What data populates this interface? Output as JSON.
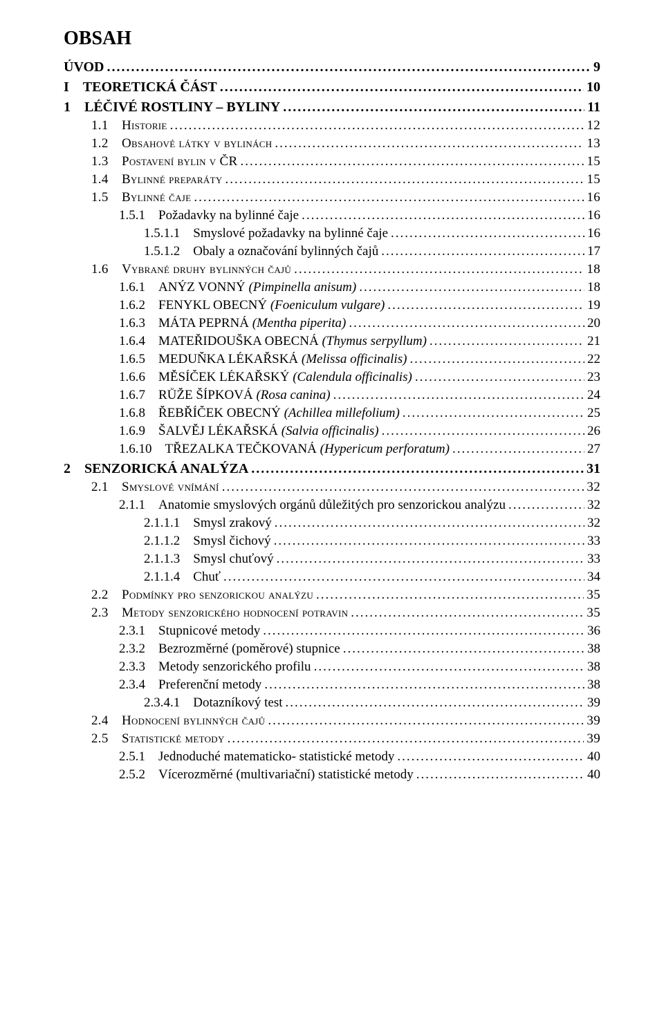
{
  "title": "OBSAH",
  "leader_fill": "..................................................................................................................................................................................................",
  "entries": [
    {
      "num": "",
      "text": "ÚVOD",
      "page": "9",
      "cls": "lvl-0",
      "indent": "indent-0"
    },
    {
      "num": "I",
      "text": "TEORETICKÁ ČÁST",
      "page": "10",
      "cls": "lvl-0",
      "indent": "indent-0"
    },
    {
      "num": "1",
      "text": "LÉČIVÉ ROSTLINY – BYLINY",
      "page": "11",
      "cls": "lvl-0",
      "indent": "indent-0"
    },
    {
      "num": "1.1",
      "text": "Historie",
      "page": "12",
      "cls": "lvl-2 smallcaps",
      "indent": "indent-1"
    },
    {
      "num": "1.2",
      "text": "Obsahové látky v bylinách",
      "page": "13",
      "cls": "lvl-2 smallcaps",
      "indent": "indent-1"
    },
    {
      "num": "1.3",
      "text": "Postavení bylin v ČR",
      "page": "15",
      "cls": "lvl-2 smallcaps",
      "indent": "indent-1"
    },
    {
      "num": "1.4",
      "text": "Bylinné preparáty",
      "page": "15",
      "cls": "lvl-2 smallcaps",
      "indent": "indent-1"
    },
    {
      "num": "1.5",
      "text": "Bylinné čaje",
      "page": "16",
      "cls": "lvl-2 smallcaps",
      "indent": "indent-1"
    },
    {
      "num": "1.5.1",
      "text": "Požadavky na bylinné čaje",
      "page": "16",
      "cls": "lvl-3",
      "indent": "indent-2"
    },
    {
      "num": "1.5.1.1",
      "text": "Smyslové požadavky na bylinné čaje",
      "page": "16",
      "cls": "lvl-4",
      "indent": "indent-3"
    },
    {
      "num": "1.5.1.2",
      "text": "Obaly a označování bylinných čajů",
      "page": "17",
      "cls": "lvl-4",
      "indent": "indent-3"
    },
    {
      "num": "1.6",
      "text": "Vybrané druhy bylinných čajů",
      "page": "18",
      "cls": "lvl-2 smallcaps",
      "indent": "indent-1"
    },
    {
      "num": "1.6.1",
      "text": "ANÝZ VONNÝ ",
      "latin": "(Pimpinella anisum)",
      "page": "18",
      "cls": "lvl-3",
      "indent": "indent-2"
    },
    {
      "num": "1.6.2",
      "text": "FENYKL  OBECNÝ  ",
      "latin": "(Foeniculum vulgare)",
      "page": "19",
      "cls": "lvl-3",
      "indent": "indent-2"
    },
    {
      "num": "1.6.3",
      "text": "MÁTA PEPRNÁ  ",
      "latin": "(Mentha piperita)",
      "page": "20",
      "cls": "lvl-3",
      "indent": "indent-2"
    },
    {
      "num": "1.6.4",
      "text": "MATEŘIDOUŠKA OBECNÁ  ",
      "latin": "(Thymus serpyllum)",
      "page": "21",
      "cls": "lvl-3",
      "indent": "indent-2"
    },
    {
      "num": "1.6.5",
      "text": "MEDUŇKA LÉKAŘSKÁ  ",
      "latin": "(Melissa officinalis)",
      "page": "22",
      "cls": "lvl-3",
      "indent": "indent-2"
    },
    {
      "num": "1.6.6",
      "text": "MĚSÍČEK  LÉKAŘSKÝ ",
      "latin": "(Calendula officinalis)",
      "page": "23",
      "cls": "lvl-3",
      "indent": "indent-2"
    },
    {
      "num": "1.6.7",
      "text": "RŮŽE  ŠÍPKOVÁ ",
      "latin": "(Rosa canina)",
      "page": "24",
      "cls": "lvl-3",
      "indent": "indent-2"
    },
    {
      "num": "1.6.8",
      "text": "ŘEBŘÍČEK  OBECNÝ ",
      "latin": "(Achillea millefolium)",
      "page": "25",
      "cls": "lvl-3",
      "indent": "indent-2"
    },
    {
      "num": "1.6.9",
      "text": "ŠALVĚJ  LÉKAŘSKÁ  ",
      "latin": "(Salvia officinalis)",
      "page": "26",
      "cls": "lvl-3",
      "indent": "indent-2"
    },
    {
      "num": "1.6.10",
      "text": "TŘEZALKA TEČKOVANÁ ",
      "latin": "(Hypericum perforatum)",
      "page": "27",
      "cls": "lvl-3",
      "indent": "indent-2"
    },
    {
      "num": "2",
      "text": "SENZORICKÁ ANALÝZA",
      "page": "31",
      "cls": "lvl-0",
      "indent": "indent-0"
    },
    {
      "num": "2.1",
      "text": "Smyslové vnímání",
      "page": "32",
      "cls": "lvl-2 smallcaps",
      "indent": "indent-1"
    },
    {
      "num": "2.1.1",
      "text": "Anatomie smyslových orgánů důležitých pro senzorickou analýzu",
      "page": "32",
      "cls": "lvl-3",
      "indent": "indent-2"
    },
    {
      "num": "2.1.1.1",
      "text": "Smysl zrakový",
      "page": "32",
      "cls": "lvl-4",
      "indent": "indent-3"
    },
    {
      "num": "2.1.1.2",
      "text": "Smysl čichový",
      "page": "33",
      "cls": "lvl-4",
      "indent": "indent-3"
    },
    {
      "num": "2.1.1.3",
      "text": "Smysl chuťový",
      "page": "33",
      "cls": "lvl-4",
      "indent": "indent-3"
    },
    {
      "num": "2.1.1.4",
      "text": "Chuť",
      "page": "34",
      "cls": "lvl-4",
      "indent": "indent-3"
    },
    {
      "num": "2.2",
      "text": "Podmínky pro senzorickou analýzu",
      "page": "35",
      "cls": "lvl-2 smallcaps",
      "indent": "indent-1"
    },
    {
      "num": "2.3",
      "text": "Metody senzorického hodnocení potravin",
      "page": "35",
      "cls": "lvl-2 smallcaps",
      "indent": "indent-1"
    },
    {
      "num": "2.3.1",
      "text": "Stupnicové metody",
      "page": "36",
      "cls": "lvl-3",
      "indent": "indent-2"
    },
    {
      "num": "2.3.2",
      "text": "Bezrozměrné (poměrové) stupnice",
      "page": "38",
      "cls": "lvl-3",
      "indent": "indent-2"
    },
    {
      "num": "2.3.3",
      "text": "Metody senzorického profilu",
      "page": "38",
      "cls": "lvl-3",
      "indent": "indent-2"
    },
    {
      "num": "2.3.4",
      "text": "Preferenční metody",
      "page": "38",
      "cls": "lvl-3",
      "indent": "indent-2"
    },
    {
      "num": "2.3.4.1",
      "text": "Dotazníkový test",
      "page": "39",
      "cls": "lvl-4",
      "indent": "indent-3"
    },
    {
      "num": "2.4",
      "text": "Hodnocení bylinných čajů",
      "page": "39",
      "cls": "lvl-2 smallcaps",
      "indent": "indent-1"
    },
    {
      "num": "2.5",
      "text": "Statistické metody",
      "page": "39",
      "cls": "lvl-2 smallcaps",
      "indent": "indent-1"
    },
    {
      "num": "2.5.1",
      "text": "Jednoduché matematicko- statistické metody",
      "page": "40",
      "cls": "lvl-3",
      "indent": "indent-2"
    },
    {
      "num": "2.5.2",
      "text": "Vícerozměrné (multivariační) statistické metody",
      "page": "40",
      "cls": "lvl-3",
      "indent": "indent-2"
    }
  ]
}
